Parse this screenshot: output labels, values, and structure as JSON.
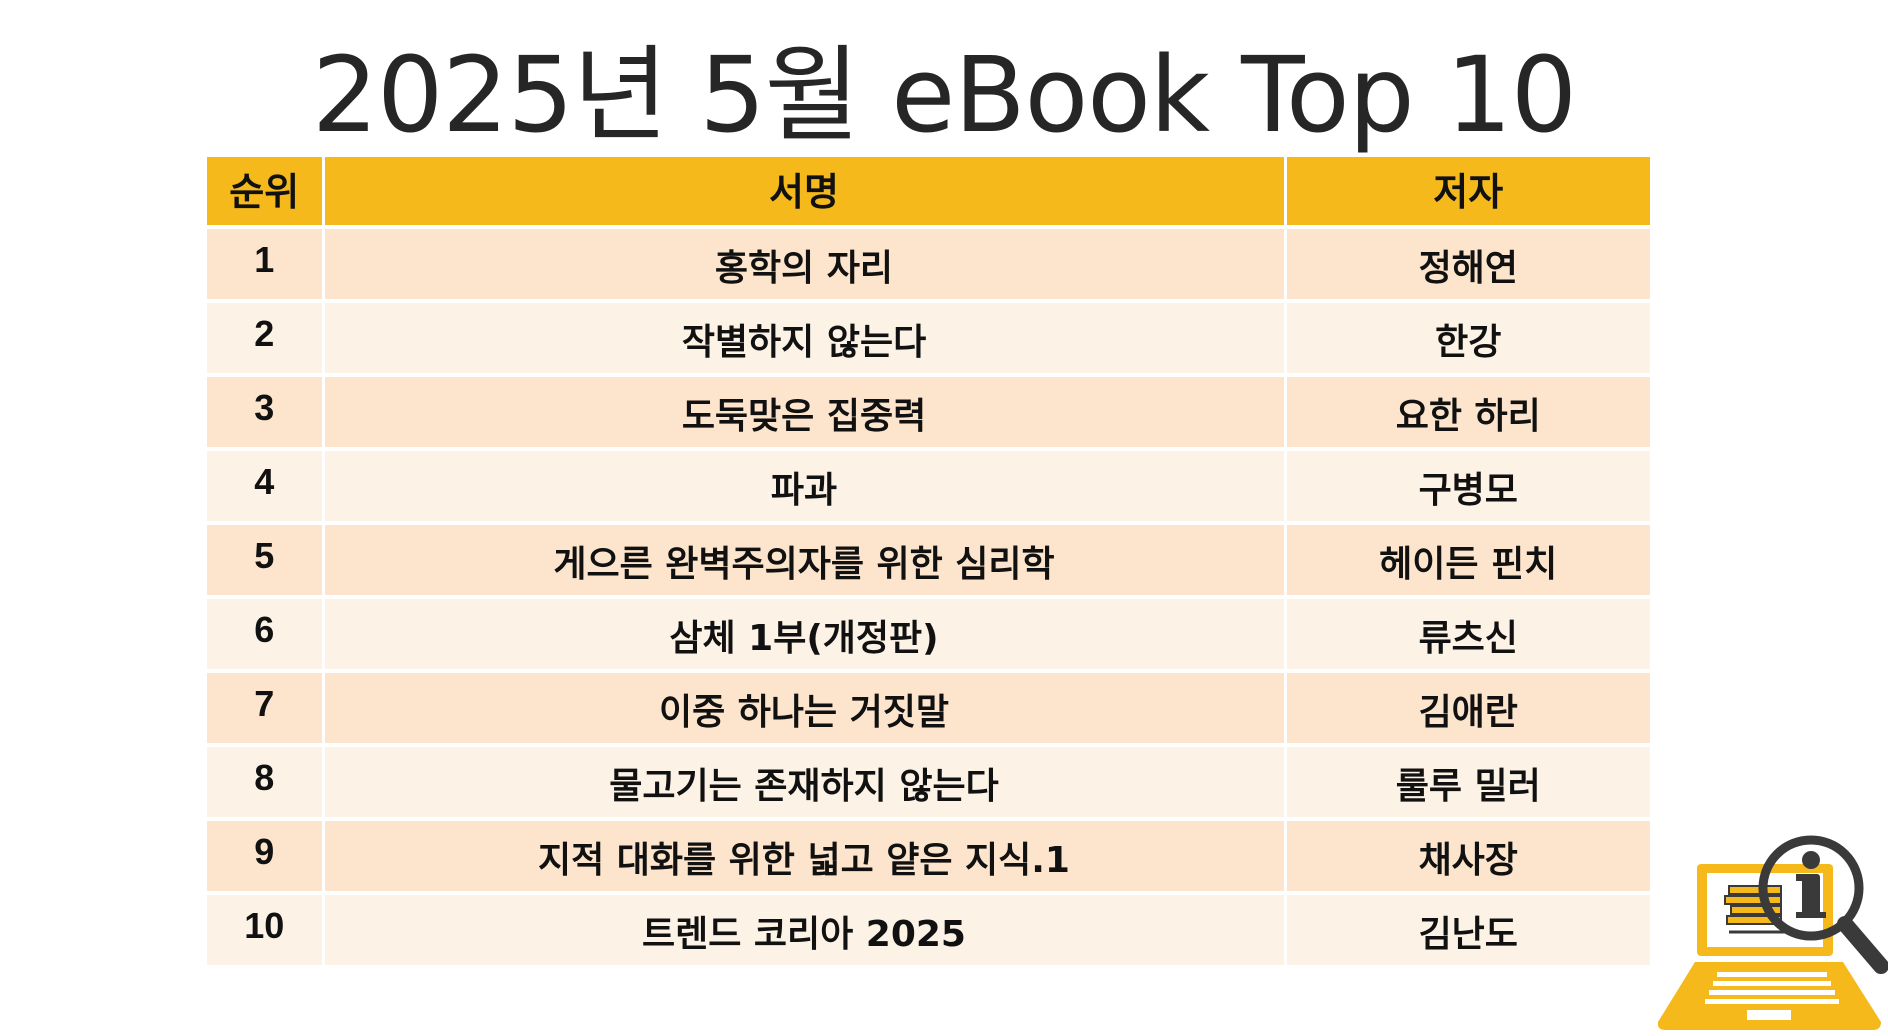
{
  "title": "2025년 5월 eBook Top 10",
  "table": {
    "headers": {
      "rank": "순위",
      "title": "서명",
      "author": "저자"
    },
    "rows": [
      {
        "rank": "1",
        "title": "홍학의 자리",
        "author": "정해연"
      },
      {
        "rank": "2",
        "title": "작별하지 않는다",
        "author": "한강"
      },
      {
        "rank": "3",
        "title": "도둑맞은 집중력",
        "author": "요한 하리"
      },
      {
        "rank": "4",
        "title": "파과",
        "author": "구병모"
      },
      {
        "rank": "5",
        "title": "게으른 완벽주의자를 위한 심리학",
        "author": "헤이든 핀치"
      },
      {
        "rank": "6",
        "title": "삼체 1부(개정판)",
        "author": "류츠신"
      },
      {
        "rank": "7",
        "title": "이중 하나는 거짓말",
        "author": "김애란"
      },
      {
        "rank": "8",
        "title": "물고기는 존재하지 않는다",
        "author": "룰루 밀러"
      },
      {
        "rank": "9",
        "title": "지적 대화를 위한 넓고 얕은 지식.1",
        "author": "채사장"
      },
      {
        "rank": "10",
        "title": "트렌드 코리아 2025",
        "author": "김난도"
      }
    ]
  },
  "colors": {
    "header_bg": "#f5b91c",
    "row_odd_bg": "#fce5cc",
    "row_even_bg": "#fdf2e6",
    "icon_gold": "#f5b91c",
    "icon_gray": "#3a3a3a"
  },
  "icons": {
    "corner_icon": "laptop-book-search-info-icon"
  }
}
